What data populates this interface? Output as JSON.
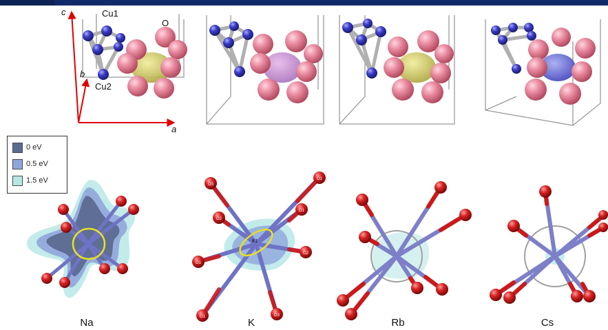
{
  "structure_labels": {
    "c_axis": "c",
    "b_axis": "b",
    "a_axis": "a",
    "cu1": "Cu1",
    "cu2": "Cu2",
    "o": "O"
  },
  "legend": {
    "items": [
      {
        "label": "0 eV",
        "color": "#5b6a90"
      },
      {
        "label": "0.5 eV",
        "color": "#8fa6dc"
      },
      {
        "label": "1.5 eV",
        "color": "#b8e8e6"
      }
    ]
  },
  "site_labels": {
    "k1": "K1",
    "o1": "O1",
    "o2": "O2",
    "o3": "O3"
  },
  "captions": {
    "na": "Na",
    "k": "K",
    "rb": "Rb",
    "cs": "Cs"
  },
  "colors": {
    "cu_atom": "#3b3dbf",
    "o_atom_pink": "#e0788e",
    "o_atom_red": "#cc1a1a",
    "bond": "#7d80c8",
    "axis": "#e00000",
    "circle_highlight": "#e8e020",
    "topbar": "#102a6b"
  }
}
